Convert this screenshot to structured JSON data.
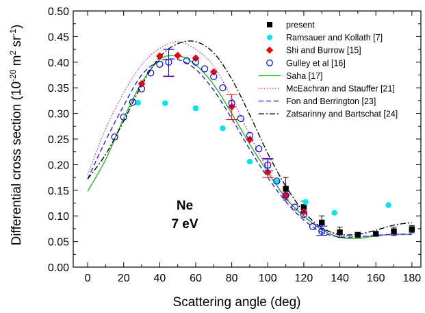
{
  "chart_data": {
    "type": "scatter",
    "xlabel": "Scattering angle (deg)",
    "ylabel": "Differential cross section (10",
    "ylabel_sup1": "-20",
    "ylabel_mid": " m",
    "ylabel_sup2": "2",
    "ylabel_mid2": " sr",
    "ylabel_sup3": "-1",
    "ylabel_end": ")",
    "xlim": [
      -8,
      185
    ],
    "ylim": [
      0,
      0.5
    ],
    "xticks": [
      0,
      20,
      40,
      60,
      80,
      100,
      120,
      140,
      160,
      180
    ],
    "yticks": [
      0.0,
      0.05,
      0.1,
      0.15,
      0.2,
      0.25,
      0.3,
      0.35,
      0.4,
      0.45,
      0.5
    ],
    "ytick_labels": [
      "0.00",
      "0.05",
      "0.10",
      "0.15",
      "0.20",
      "0.25",
      "0.30",
      "0.35",
      "0.40",
      "0.45",
      "0.50"
    ],
    "annotation_line1": "Ne",
    "annotation_line2": "7 eV",
    "legend_position": "top-right",
    "series": [
      {
        "name": "present",
        "kind": "points",
        "marker": "square",
        "color": "#000000",
        "x": [
          110,
          120,
          130,
          140,
          150,
          160,
          170,
          180
        ],
        "y": [
          0.153,
          0.117,
          0.087,
          0.068,
          0.063,
          0.065,
          0.07,
          0.074
        ],
        "err": [
          0.022,
          0.012,
          0.013,
          0.01,
          0.004,
          0.004,
          0.008,
          0.007
        ]
      },
      {
        "name": "Ramsauer and Kollath [7]",
        "kind": "points",
        "marker": "circle-filled",
        "color": "#00e5ee",
        "x": [
          28,
          43,
          60,
          75,
          90,
          105,
          121,
          137,
          167
        ],
        "y": [
          0.321,
          0.32,
          0.31,
          0.271,
          0.206,
          0.166,
          0.127,
          0.106,
          0.121
        ]
      },
      {
        "name": "Shi and Burrow [15]",
        "kind": "points",
        "marker": "diamond",
        "color": "#ee0000",
        "x": [
          30,
          40,
          50,
          60,
          70,
          80,
          90,
          100,
          110,
          120
        ],
        "y": [
          0.358,
          0.412,
          0.413,
          0.408,
          0.381,
          0.313,
          0.249,
          0.185,
          0.14,
          0.108
        ],
        "err_x": [
          45,
          80,
          100
        ],
        "err_low": [
          0.373,
          0.288,
          0.175
        ],
        "err_high": [
          0.425,
          0.337,
          0.21
        ]
      },
      {
        "name": "Gulley et al [16]",
        "kind": "points",
        "marker": "circle-open",
        "color": "#0000ee",
        "x": [
          15,
          20,
          25,
          30,
          35,
          40,
          45,
          55,
          60,
          65,
          70,
          75,
          80,
          85,
          90,
          95,
          100,
          105,
          110,
          115,
          120,
          125,
          130
        ],
        "y": [
          0.254,
          0.293,
          0.322,
          0.348,
          0.379,
          0.396,
          0.4,
          0.403,
          0.4,
          0.387,
          0.372,
          0.35,
          0.32,
          0.29,
          0.257,
          0.231,
          0.199,
          0.168,
          0.14,
          0.117,
          0.103,
          0.079,
          0.07
        ],
        "err_x": [
          45,
          100,
          130
        ],
        "err_low": [
          0.372,
          0.188,
          0.062
        ],
        "err_high": [
          0.425,
          0.212,
          0.08
        ]
      },
      {
        "name": "Saha [17]",
        "kind": "line",
        "dash": "solid",
        "color": "#22bb22",
        "x": [
          0,
          10,
          20,
          30,
          40,
          50,
          60,
          70,
          80,
          90,
          100,
          110,
          120,
          130,
          140,
          150,
          160,
          170,
          180
        ],
        "y": [
          0.148,
          0.21,
          0.29,
          0.36,
          0.405,
          0.413,
          0.395,
          0.356,
          0.3,
          0.24,
          0.185,
          0.135,
          0.1,
          0.073,
          0.058,
          0.056,
          0.061,
          0.064,
          0.064
        ]
      },
      {
        "name": "McEachran and Stauffer [21]",
        "kind": "line",
        "dash": "dot",
        "color": "#cc33cc",
        "x": [
          0,
          10,
          20,
          30,
          40,
          50,
          60,
          70,
          80,
          90,
          100,
          110,
          120,
          130,
          140,
          150,
          160,
          170,
          180
        ],
        "y": [
          0.18,
          0.27,
          0.34,
          0.395,
          0.427,
          0.44,
          0.425,
          0.392,
          0.33,
          0.258,
          0.19,
          0.135,
          0.098,
          0.075,
          0.062,
          0.06,
          0.062,
          0.063,
          0.063
        ]
      },
      {
        "name": "Fon and Berrington [23]",
        "kind": "line",
        "dash": "dash",
        "color": "#2222ee",
        "x": [
          0,
          10,
          20,
          30,
          40,
          50,
          60,
          70,
          80,
          90,
          100,
          110,
          120,
          130,
          140,
          150,
          160,
          170,
          180
        ],
        "y": [
          0.172,
          0.247,
          0.315,
          0.375,
          0.402,
          0.405,
          0.386,
          0.345,
          0.29,
          0.23,
          0.175,
          0.128,
          0.092,
          0.068,
          0.059,
          0.059,
          0.062,
          0.064,
          0.064
        ]
      },
      {
        "name": "Zatsarinny and Bartschat [24]",
        "kind": "line",
        "dash": "dashdot",
        "color": "#000000",
        "x": [
          0,
          10,
          20,
          30,
          40,
          50,
          60,
          70,
          80,
          90,
          100,
          110,
          120,
          130,
          140,
          150,
          160,
          170,
          180
        ],
        "y": [
          0.172,
          0.22,
          0.285,
          0.355,
          0.41,
          0.436,
          0.44,
          0.418,
          0.367,
          0.297,
          0.222,
          0.158,
          0.108,
          0.077,
          0.064,
          0.064,
          0.072,
          0.082,
          0.087
        ]
      }
    ]
  }
}
